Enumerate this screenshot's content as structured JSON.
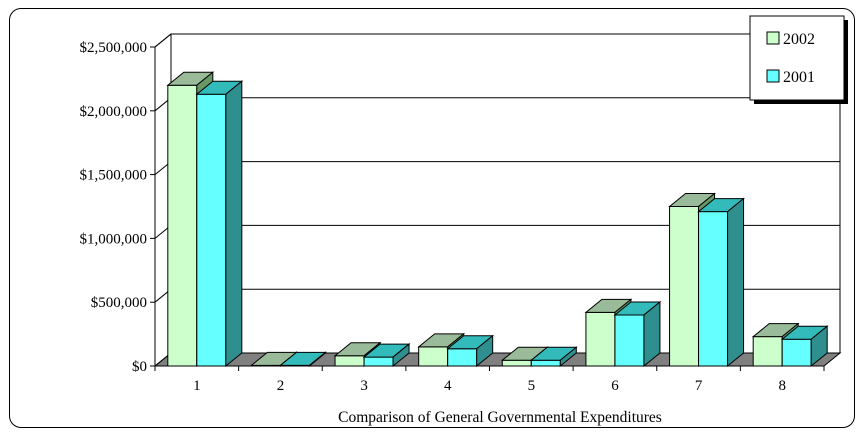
{
  "chart_data": {
    "type": "bar",
    "title": "",
    "xlabel": "Comparison of General Governmental Expenditures",
    "ylabel": "",
    "categories": [
      "1",
      "2",
      "3",
      "4",
      "5",
      "6",
      "7",
      "8"
    ],
    "series": [
      {
        "name": "2002",
        "values": [
          2200000,
          5000,
          80000,
          150000,
          45000,
          420000,
          1250000,
          230000
        ]
      },
      {
        "name": "2001",
        "values": [
          2130000,
          5000,
          70000,
          135000,
          45000,
          400000,
          1210000,
          210000
        ]
      }
    ],
    "ylim": [
      0,
      2500000
    ],
    "yticks": [
      0,
      500000,
      1000000,
      1500000,
      2000000,
      2500000
    ],
    "ytick_labels": [
      "$0",
      "$500,000",
      "$1,000,000",
      "$1,500,000",
      "$2,000,000",
      "$2,500,000"
    ],
    "grid": true,
    "legend_position": "top-right",
    "style": "3d-clustered-bar",
    "colors": {
      "2002": {
        "front": "#ccffcc",
        "top": "#99bb99",
        "side": "#669966"
      },
      "2001": {
        "front": "#66ffff",
        "top": "#33bbbb",
        "side": "#2f8f8f"
      },
      "grid": "#000000",
      "floor": "#808080"
    }
  }
}
